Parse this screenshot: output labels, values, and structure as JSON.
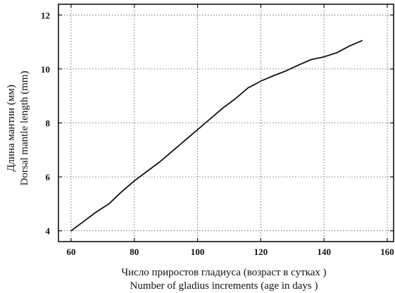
{
  "chart_data": {
    "type": "line",
    "title": "",
    "xlabel_lines": [
      "Число приростов гладиуса (возраст в сутках )",
      "Number of gladius increments (age in days )"
    ],
    "ylabel_lines": [
      "Длина мантии (мм)",
      "Dorsal mantle length (mm)"
    ],
    "xlim": [
      56,
      162
    ],
    "ylim": [
      3.6,
      12.4
    ],
    "x_ticks": [
      60,
      80,
      100,
      120,
      140,
      160
    ],
    "y_ticks": [
      4,
      6,
      8,
      10,
      12
    ],
    "grid": true,
    "series": [
      {
        "x": [
          60,
          64,
          68,
          72,
          76,
          80,
          84,
          88,
          92,
          96,
          100,
          104,
          108,
          112,
          116,
          118,
          120,
          124,
          128,
          132,
          136,
          140,
          144,
          148,
          152
        ],
        "y": [
          4.0,
          4.35,
          4.7,
          5.0,
          5.45,
          5.85,
          6.2,
          6.55,
          6.95,
          7.35,
          7.75,
          8.15,
          8.55,
          8.9,
          9.3,
          9.42,
          9.55,
          9.75,
          9.93,
          10.15,
          10.35,
          10.45,
          10.6,
          10.85,
          11.05
        ]
      }
    ]
  }
}
